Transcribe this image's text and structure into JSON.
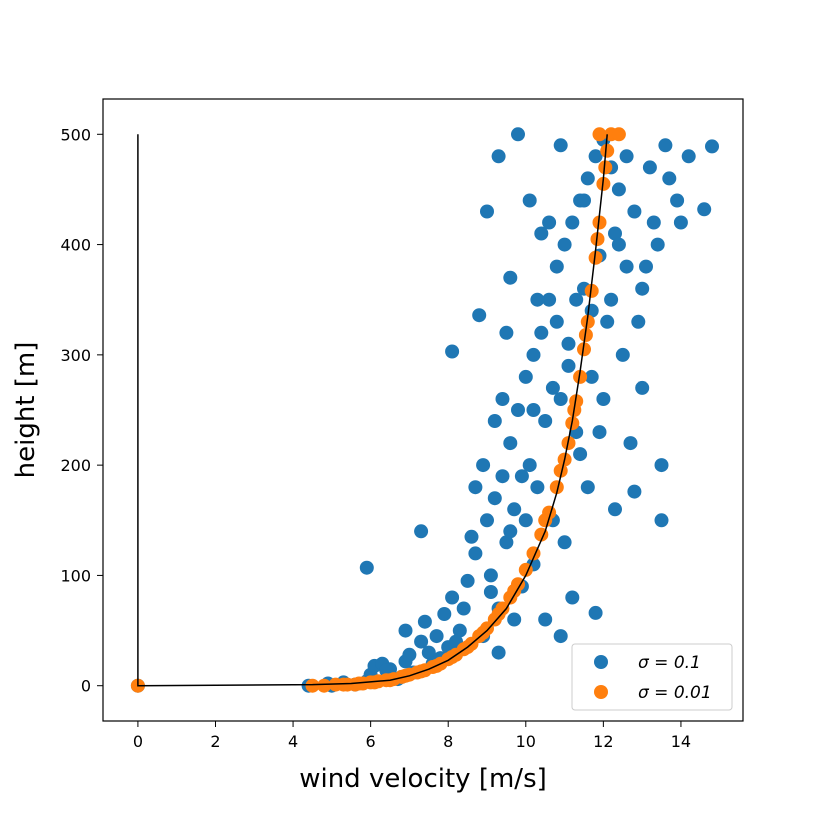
{
  "chart_data": {
    "type": "scatter",
    "xlabel": "wind velocity [m/s]",
    "ylabel": "height [m]",
    "xlim": [
      -0.9,
      15.6
    ],
    "ylim": [
      -32,
      532
    ],
    "xticks": [
      0,
      2,
      4,
      6,
      8,
      10,
      12,
      14
    ],
    "yticks": [
      0,
      100,
      200,
      300,
      400,
      500
    ],
    "grid": false,
    "legend_position": "lower-right",
    "series": [
      {
        "name": "σ = 0.1",
        "color": "#1f77b4",
        "kind": "scatter",
        "points": [
          [
            0,
            0
          ],
          [
            4.4,
            0
          ],
          [
            4.9,
            2
          ],
          [
            5.0,
            0
          ],
          [
            5.3,
            3
          ],
          [
            5.6,
            1
          ],
          [
            5.9,
            4
          ],
          [
            6.0,
            10
          ],
          [
            6.1,
            18
          ],
          [
            6.3,
            20
          ],
          [
            6.5,
            15
          ],
          [
            6.7,
            6
          ],
          [
            6.9,
            22
          ],
          [
            6.9,
            50
          ],
          [
            7.1,
            12
          ],
          [
            7.3,
            40
          ],
          [
            7.4,
            58
          ],
          [
            7.5,
            30
          ],
          [
            7.8,
            25
          ],
          [
            7.9,
            65
          ],
          [
            8.0,
            35
          ],
          [
            8.1,
            80
          ],
          [
            8.3,
            50
          ],
          [
            8.5,
            95
          ],
          [
            8.7,
            120
          ],
          [
            8.9,
            45
          ],
          [
            9.0,
            150
          ],
          [
            9.1,
            100
          ],
          [
            9.2,
            170
          ],
          [
            9.3,
            70
          ],
          [
            9.4,
            190
          ],
          [
            9.5,
            130
          ],
          [
            9.6,
            220
          ],
          [
            9.7,
            160
          ],
          [
            9.8,
            250
          ],
          [
            9.9,
            90
          ],
          [
            10.0,
            280
          ],
          [
            10.1,
            200
          ],
          [
            10.2,
            300
          ],
          [
            10.3,
            180
          ],
          [
            10.4,
            320
          ],
          [
            10.5,
            240
          ],
          [
            10.6,
            350
          ],
          [
            10.7,
            150
          ],
          [
            10.8,
            380
          ],
          [
            10.9,
            260
          ],
          [
            11.0,
            400
          ],
          [
            11.1,
            310
          ],
          [
            11.2,
            420
          ],
          [
            11.3,
            230
          ],
          [
            11.4,
            440
          ],
          [
            11.5,
            360
          ],
          [
            11.6,
            460
          ],
          [
            11.7,
            280
          ],
          [
            11.8,
            480
          ],
          [
            11.9,
            390
          ],
          [
            12.0,
            495
          ],
          [
            12.1,
            330
          ],
          [
            12.2,
            470
          ],
          [
            12.3,
            410
          ],
          [
            12.4,
            450
          ],
          [
            12.6,
            380
          ],
          [
            12.8,
            430
          ],
          [
            13.0,
            360
          ],
          [
            13.2,
            470
          ],
          [
            13.4,
            400
          ],
          [
            13.6,
            490
          ],
          [
            13.9,
            440
          ],
          [
            14.2,
            480
          ],
          [
            14.6,
            432
          ],
          [
            14.8,
            489
          ],
          [
            5.9,
            107
          ],
          [
            8.1,
            303
          ],
          [
            7.3,
            140
          ],
          [
            8.8,
            336
          ],
          [
            9.0,
            430
          ],
          [
            9.3,
            480
          ],
          [
            9.8,
            500
          ],
          [
            13.5,
            150
          ],
          [
            13.5,
            200
          ],
          [
            11.8,
            66
          ],
          [
            12.3,
            160
          ],
          [
            12.8,
            176
          ],
          [
            10.5,
            60
          ],
          [
            10.9,
            45
          ],
          [
            11.2,
            80
          ],
          [
            8.6,
            135
          ],
          [
            9.2,
            240
          ],
          [
            9.6,
            370
          ],
          [
            10.1,
            440
          ],
          [
            10.4,
            410
          ],
          [
            10.9,
            490
          ],
          [
            11.3,
            350
          ],
          [
            12.0,
            260
          ],
          [
            12.5,
            300
          ],
          [
            13.0,
            270
          ],
          [
            12.7,
            220
          ],
          [
            11.6,
            180
          ],
          [
            11.0,
            130
          ],
          [
            10.2,
            110
          ],
          [
            9.7,
            60
          ],
          [
            9.3,
            30
          ],
          [
            8.4,
            70
          ],
          [
            7.7,
            45
          ],
          [
            7.0,
            28
          ],
          [
            6.4,
            14
          ],
          [
            8.9,
            200
          ],
          [
            9.5,
            320
          ],
          [
            10.0,
            150
          ],
          [
            10.7,
            270
          ],
          [
            11.4,
            210
          ],
          [
            12.2,
            350
          ],
          [
            12.9,
            330
          ],
          [
            13.3,
            420
          ],
          [
            11.9,
            230
          ],
          [
            10.6,
            420
          ],
          [
            9.9,
            190
          ],
          [
            9.4,
            260
          ],
          [
            8.7,
            180
          ],
          [
            10.3,
            350
          ],
          [
            11.1,
            290
          ],
          [
            11.7,
            340
          ],
          [
            12.4,
            400
          ],
          [
            13.1,
            380
          ],
          [
            13.7,
            460
          ],
          [
            14.0,
            420
          ],
          [
            12.6,
            480
          ],
          [
            11.5,
            440
          ],
          [
            10.8,
            330
          ],
          [
            10.2,
            250
          ],
          [
            9.6,
            140
          ],
          [
            9.1,
            85
          ],
          [
            8.2,
            40
          ],
          [
            7.6,
            20
          ],
          [
            6.8,
            8
          ]
        ]
      },
      {
        "name": "σ = 0.01",
        "color": "#ff7f0e",
        "kind": "scatter",
        "points": [
          [
            0,
            0
          ],
          [
            4.5,
            0
          ],
          [
            4.8,
            0
          ],
          [
            5.1,
            1
          ],
          [
            5.4,
            1
          ],
          [
            5.6,
            1
          ],
          [
            5.8,
            2
          ],
          [
            6.0,
            3
          ],
          [
            6.2,
            4
          ],
          [
            6.4,
            5
          ],
          [
            6.6,
            6
          ],
          [
            6.8,
            8
          ],
          [
            7.0,
            10
          ],
          [
            7.2,
            12
          ],
          [
            7.4,
            14
          ],
          [
            7.6,
            17
          ],
          [
            7.8,
            20
          ],
          [
            8.0,
            24
          ],
          [
            8.2,
            28
          ],
          [
            8.4,
            33
          ],
          [
            8.6,
            38
          ],
          [
            8.8,
            45
          ],
          [
            9.0,
            52
          ],
          [
            9.2,
            60
          ],
          [
            9.4,
            70
          ],
          [
            9.6,
            80
          ],
          [
            9.8,
            92
          ],
          [
            10.0,
            105
          ],
          [
            10.2,
            120
          ],
          [
            10.4,
            137
          ],
          [
            10.6,
            157
          ],
          [
            10.8,
            180
          ],
          [
            11.0,
            205
          ],
          [
            11.1,
            220
          ],
          [
            11.2,
            238
          ],
          [
            11.3,
            258
          ],
          [
            11.4,
            280
          ],
          [
            11.5,
            305
          ],
          [
            11.6,
            330
          ],
          [
            11.7,
            358
          ],
          [
            11.8,
            388
          ],
          [
            11.9,
            420
          ],
          [
            12.0,
            455
          ],
          [
            12.1,
            485
          ],
          [
            12.2,
            500
          ],
          [
            12.4,
            500
          ],
          [
            11.9,
            500
          ],
          [
            10.5,
            150
          ],
          [
            10.9,
            195
          ],
          [
            11.25,
            250
          ],
          [
            11.55,
            318
          ],
          [
            11.85,
            405
          ],
          [
            12.05,
            470
          ],
          [
            9.7,
            86
          ],
          [
            9.3,
            65
          ],
          [
            8.9,
            48
          ],
          [
            8.5,
            35
          ],
          [
            8.1,
            26
          ],
          [
            7.7,
            18
          ],
          [
            7.3,
            13
          ],
          [
            6.9,
            9
          ],
          [
            6.5,
            5
          ],
          [
            6.1,
            3
          ],
          [
            5.7,
            2
          ],
          [
            5.3,
            1
          ]
        ]
      },
      {
        "name": "",
        "color": "#000000",
        "kind": "line",
        "points": [
          [
            0,
            0
          ],
          [
            0,
            500
          ],
          [
            0,
            0
          ],
          [
            4.5,
            1
          ],
          [
            5.5,
            2
          ],
          [
            6.5,
            5
          ],
          [
            7.0,
            9
          ],
          [
            7.5,
            15
          ],
          [
            8.0,
            23
          ],
          [
            8.5,
            35
          ],
          [
            9.0,
            50
          ],
          [
            9.5,
            70
          ],
          [
            10.0,
            100
          ],
          [
            10.5,
            140
          ],
          [
            10.8,
            175
          ],
          [
            11.0,
            205
          ],
          [
            11.2,
            240
          ],
          [
            11.4,
            285
          ],
          [
            11.6,
            335
          ],
          [
            11.8,
            395
          ],
          [
            12.0,
            460
          ],
          [
            12.1,
            500
          ]
        ]
      }
    ],
    "legend": [
      {
        "label": "σ = 0.1",
        "color": "#1f77b4"
      },
      {
        "label": "σ = 0.01",
        "color": "#ff7f0e"
      }
    ]
  }
}
